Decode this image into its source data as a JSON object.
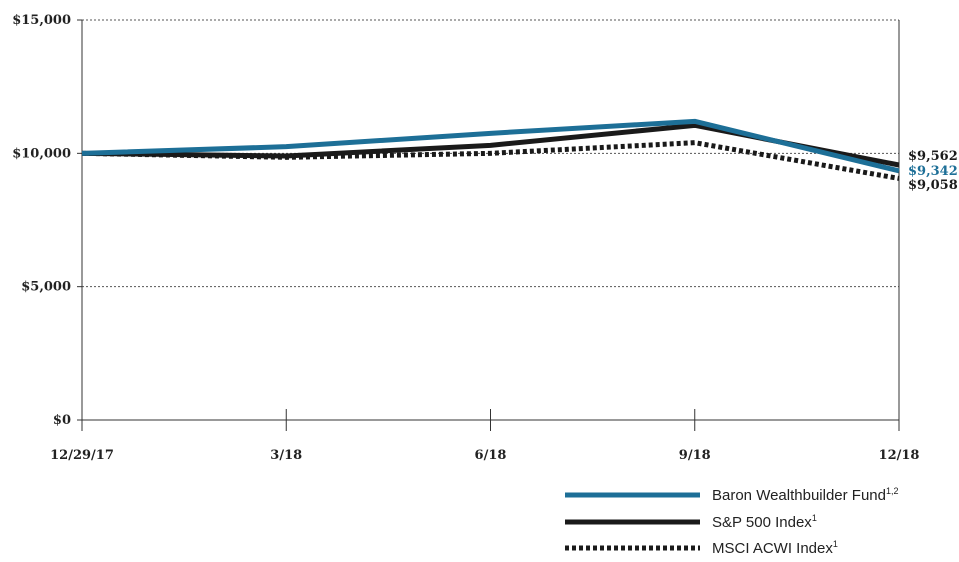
{
  "chart_data": {
    "type": "line",
    "categories": [
      "12/29/17",
      "3/18",
      "6/18",
      "9/18",
      "12/18"
    ],
    "ylim": [
      0,
      15000
    ],
    "y_ticks": [
      "$0",
      "$5,000",
      "$10,000",
      "$15,000"
    ],
    "y_tick_values": [
      0,
      5000,
      10000,
      15000
    ],
    "grid": "horizontal dotted",
    "legend_position": "bottom-right",
    "series": [
      {
        "name": "Baron Wealthbuilder Fund",
        "superscript": "1,2",
        "style": "solid",
        "color": "#1d6f97",
        "values": [
          10000,
          10250,
          10750,
          11200,
          9342
        ],
        "end_label": "$9,342"
      },
      {
        "name": "S&P 500 Index",
        "superscript": "1",
        "style": "solid",
        "color": "#1a1a1a",
        "values": [
          10000,
          9900,
          10300,
          11050,
          9562
        ],
        "end_label": "$9,562"
      },
      {
        "name": "MSCI ACWI Index",
        "superscript": "1",
        "style": "dotted",
        "color": "#1a1a1a",
        "values": [
          10000,
          9850,
          10000,
          10400,
          9058
        ],
        "end_label": "$9,058"
      }
    ]
  }
}
